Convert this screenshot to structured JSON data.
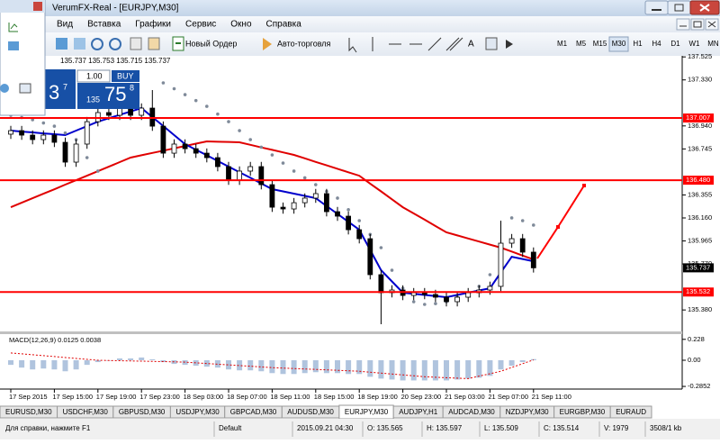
{
  "window": {
    "title": "VerumFX-Real - [EURJPY,M30]"
  },
  "menu": [
    "Вид",
    "Вставка",
    "Графики",
    "Сервис",
    "Окно",
    "Справка"
  ],
  "toolbar": {
    "new_order": "Новый Ордер",
    "auto_trading": "Авто-торговля",
    "timeframes": [
      "M1",
      "M5",
      "M15",
      "M30",
      "H1",
      "H4",
      "D1",
      "W1",
      "MN"
    ],
    "active_timeframe": 3
  },
  "one_click": {
    "lot": "1.00",
    "buy": "BUY",
    "buy_price": [
      "135",
      "75",
      "8"
    ],
    "sell_price": [
      "3",
      "7"
    ]
  },
  "chart_data": [
    {
      "type": "candlestick",
      "header": "135.737 135.753 135.715 135.737",
      "categories": [
        "17 Sep 2015",
        null,
        null,
        null,
        "17 Sep 15:00",
        null,
        null,
        null,
        "17 Sep 19:00",
        null,
        null,
        null,
        "17 Sep 23:00",
        null,
        null,
        null,
        "18 Sep 03:00",
        null,
        null,
        null,
        "18 Sep 07:00",
        null,
        null,
        null,
        "18 Sep 11:00",
        null,
        null,
        null,
        "18 Sep 15:00",
        null,
        null,
        null,
        "18 Sep 19:00",
        null,
        null,
        null,
        "20 Sep 23:00",
        null,
        null,
        null,
        "21 Sep 03:00",
        null,
        null,
        null,
        "21 Sep 07:00",
        null,
        null,
        null,
        "21 Sep 11:00"
      ],
      "open": [
        136.87,
        136.9,
        136.862,
        136.824,
        136.862,
        136.801,
        136.633,
        136.786,
        136.976,
        137.053,
        137.03,
        137.106,
        137.03,
        137.091,
        136.938,
        136.709,
        136.786,
        136.747,
        136.709,
        136.671,
        136.595,
        136.48,
        136.557,
        136.595,
        136.442,
        136.251,
        136.236,
        136.289,
        136.328,
        136.366,
        136.213,
        136.175,
        136.06,
        135.984,
        135.679,
        135.526,
        135.549,
        135.503,
        135.526,
        135.511,
        135.488,
        135.45,
        135.488,
        135.526,
        135.549,
        135.58,
        135.946,
        135.984,
        135.87
      ],
      "high": [
        136.94,
        136.94,
        136.902,
        136.902,
        136.902,
        136.841,
        136.826,
        137.016,
        137.093,
        137.093,
        137.146,
        137.146,
        137.131,
        137.244,
        136.978,
        136.826,
        136.826,
        136.787,
        136.749,
        136.711,
        136.635,
        136.597,
        136.635,
        136.635,
        136.482,
        136.291,
        136.329,
        136.368,
        136.406,
        136.406,
        136.253,
        136.215,
        136.1,
        136.024,
        135.719,
        135.589,
        135.589,
        135.566,
        135.566,
        135.551,
        135.528,
        135.528,
        135.566,
        135.589,
        135.62,
        136.137,
        136.024,
        136.024,
        135.91
      ],
      "low": [
        136.83,
        136.822,
        136.784,
        136.784,
        136.761,
        136.593,
        136.593,
        136.746,
        136.936,
        136.99,
        136.99,
        136.99,
        136.99,
        136.898,
        136.669,
        136.669,
        136.707,
        136.669,
        136.631,
        136.555,
        136.44,
        136.44,
        136.517,
        136.402,
        136.211,
        136.196,
        136.196,
        136.249,
        136.288,
        136.173,
        136.135,
        136.02,
        135.944,
        135.639,
        135.259,
        135.486,
        135.463,
        135.463,
        135.471,
        135.448,
        135.41,
        135.41,
        135.448,
        135.486,
        135.509,
        135.54,
        135.906,
        135.83,
        135.697
      ],
      "close": [
        136.9,
        136.862,
        136.824,
        136.862,
        136.801,
        136.633,
        136.786,
        136.976,
        137.053,
        137.03,
        137.106,
        137.03,
        137.091,
        136.938,
        136.709,
        136.786,
        136.747,
        136.709,
        136.671,
        136.595,
        136.48,
        136.557,
        136.595,
        136.442,
        136.251,
        136.236,
        136.289,
        136.328,
        136.366,
        136.213,
        136.175,
        136.06,
        135.984,
        135.679,
        135.526,
        135.549,
        135.503,
        135.526,
        135.511,
        135.488,
        135.45,
        135.488,
        135.526,
        135.549,
        135.58,
        135.946,
        135.984,
        135.87,
        135.737
      ],
      "series": [
        {
          "color": "#e00000",
          "style": "line",
          "values": [
            136.251,
            136.289,
            136.327,
            136.365,
            136.403,
            136.442,
            136.48,
            136.518,
            136.556,
            136.594,
            136.633,
            136.671,
            136.691,
            136.711,
            136.73,
            136.75,
            136.77,
            136.79,
            136.809,
            136.806,
            136.804,
            136.801,
            136.78,
            136.758,
            136.737,
            136.716,
            136.694,
            136.665,
            136.635,
            136.606,
            136.577,
            136.547,
            136.518,
            136.451,
            136.385,
            136.318,
            136.251,
            136.198,
            136.145,
            136.091,
            136.038,
            136.012,
            135.986,
            135.96,
            135.934,
            135.908,
            135.875,
            135.841,
            135.808
          ]
        },
        {
          "color": "#0000cc",
          "style": "line",
          "values": [
            136.9,
            136.892,
            136.885,
            136.877,
            136.87,
            136.862,
            136.9,
            136.938,
            136.976,
            137.005,
            137.034,
            137.062,
            137.091,
            137.015,
            136.939,
            136.862,
            136.786,
            136.738,
            136.691,
            136.643,
            136.595,
            136.547,
            136.5,
            136.452,
            136.404,
            136.385,
            136.366,
            136.347,
            136.328,
            136.261,
            136.194,
            136.127,
            136.06,
            135.889,
            135.717,
            135.622,
            135.526,
            135.517,
            135.507,
            135.498,
            135.488,
            135.507,
            135.526,
            135.545,
            135.564,
            135.698,
            135.831,
            135.812,
            135.793
          ]
        },
        {
          "color": "#7f8a99",
          "style": "dots",
          "values": [
            137.03,
            137.011,
            136.992,
            136.965,
            136.938,
            136.88,
            136.824,
            136.671,
            136.557,
            null,
            null,
            null,
            null,
            null,
            137.305,
            137.255,
            137.205,
            137.155,
            137.106,
            137.04,
            136.976,
            136.9,
            136.824,
            136.76,
            136.694,
            136.625,
            136.557,
            136.5,
            136.442,
            136.385,
            136.328,
            136.23,
            136.137,
            136.02,
            135.908,
            135.717,
            135.564,
            135.45,
            135.427,
            135.434,
            135.45,
            135.488,
            135.526,
            135.58,
            135.679,
            null,
            136.16,
            136.137,
            136.099
          ]
        }
      ],
      "ylim": [
        135.198,
        137.534
      ],
      "yticks": [
        137.525,
        {
          "value": 137.33,
          "label": "137.330"
        },
        {
          "value": 136.94,
          "label": "136.940"
        },
        136.745,
        136.355,
        {
          "value": 136.16,
          "label": "136.160"
        },
        135.965,
        {
          "value": 135.77,
          "label": "135.770"
        },
        {
          "value": 135.38,
          "label": "135.380"
        }
      ],
      "hlines": [
        137.007,
        {
          "value": 136.48,
          "label": "136.480"
        },
        135.532
      ],
      "hline_color": "#ff0000",
      "current_price": 135.737
    },
    {
      "type": "bar",
      "title": "MACD(12,26,9) 0.0125 0.0038",
      "values": [
        -0.05,
        -0.08,
        -0.1,
        -0.09,
        -0.1,
        -0.12,
        -0.1,
        -0.05,
        -0.02,
        0.0,
        0.02,
        0.02,
        0.03,
        0.01,
        -0.02,
        -0.04,
        -0.05,
        -0.06,
        -0.07,
        -0.08,
        -0.1,
        -0.11,
        -0.11,
        -0.12,
        -0.14,
        -0.15,
        -0.15,
        -0.14,
        -0.13,
        -0.14,
        -0.14,
        -0.15,
        -0.15,
        -0.18,
        -0.2,
        -0.21,
        -0.22,
        -0.22,
        -0.22,
        -0.22,
        -0.22,
        -0.21,
        -0.2,
        -0.19,
        -0.17,
        -0.1,
        -0.06,
        -0.02,
        0.0125
      ],
      "color": "#b0c4de",
      "signal": {
        "color": "#e00000",
        "values": [
          0.08,
          0.07,
          0.06,
          0.05,
          0.04,
          0.03,
          0.02,
          0.01,
          0.0,
          -0.003,
          -0.005,
          -0.008,
          -0.01,
          -0.013,
          -0.015,
          -0.018,
          -0.02,
          -0.028,
          -0.035,
          -0.043,
          -0.05,
          -0.058,
          -0.065,
          -0.073,
          -0.08,
          -0.085,
          -0.09,
          -0.095,
          -0.1,
          -0.105,
          -0.11,
          -0.115,
          -0.12,
          -0.13,
          -0.14,
          -0.15,
          -0.16,
          -0.17,
          -0.18,
          -0.185,
          -0.19,
          -0.195,
          -0.2,
          -0.173,
          -0.147,
          -0.12,
          -0.078,
          -0.037,
          0.0038
        ]
      },
      "ylim": [
        -0.314,
        0.275
      ],
      "yticks": [
        0.228,
        {
          "value": 0,
          "label": "0.00"
        },
        -0.2852
      ]
    }
  ],
  "tabs": [
    "EURUSD,M30",
    "USDCHF,M30",
    "GBPUSD,M30",
    "USDJPY,M30",
    "GBPCAD,M30",
    "AUDUSD,M30",
    "EURJPY,M30",
    "AUDJPY,H1",
    "AUDCAD,M30",
    "NZDJPY,M30",
    "EURGBP,M30",
    "EURAUD"
  ],
  "active_tab": 6,
  "status": [
    "Для справки, нажмите F1",
    "Default",
    "2015.09.21 04:30",
    "O: 135.565",
    "H: 135.597",
    "L: 135.509",
    "C: 135.514",
    "V: 1979",
    "3508/1 kb"
  ]
}
